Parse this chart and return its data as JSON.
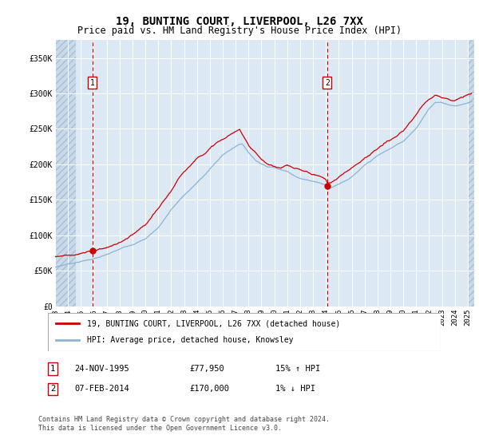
{
  "title": "19, BUNTING COURT, LIVERPOOL, L26 7XX",
  "subtitle": "Price paid vs. HM Land Registry's House Price Index (HPI)",
  "ylim": [
    0,
    375000
  ],
  "yticks": [
    0,
    50000,
    100000,
    150000,
    200000,
    250000,
    300000,
    350000
  ],
  "ytick_labels": [
    "£0",
    "£50K",
    "£100K",
    "£150K",
    "£200K",
    "£250K",
    "£300K",
    "£350K"
  ],
  "xlim_start": 1993.0,
  "xlim_end": 2025.5,
  "xticks": [
    1993,
    1994,
    1995,
    1996,
    1997,
    1998,
    1999,
    2000,
    2001,
    2002,
    2003,
    2004,
    2005,
    2006,
    2007,
    2008,
    2009,
    2010,
    2011,
    2012,
    2013,
    2014,
    2015,
    2016,
    2017,
    2018,
    2019,
    2020,
    2021,
    2022,
    2023,
    2024,
    2025
  ],
  "background_color": "#dce9f5",
  "grid_color": "#ffffff",
  "red_line_color": "#cc0000",
  "blue_line_color": "#8ab4d4",
  "marker_color": "#cc0000",
  "sale1_year": 1995.9,
  "sale1_price": 77950,
  "sale2_year": 2014.1,
  "sale2_price": 170000,
  "legend_line1": "19, BUNTING COURT, LIVERPOOL, L26 7XX (detached house)",
  "legend_line2": "HPI: Average price, detached house, Knowsley",
  "table_row1": [
    "1",
    "24-NOV-1995",
    "£77,950",
    "15% ↑ HPI"
  ],
  "table_row2": [
    "2",
    "07-FEB-2014",
    "£170,000",
    "1% ↓ HPI"
  ],
  "footer": "Contains HM Land Registry data © Crown copyright and database right 2024.\nThis data is licensed under the Open Government Licence v3.0."
}
